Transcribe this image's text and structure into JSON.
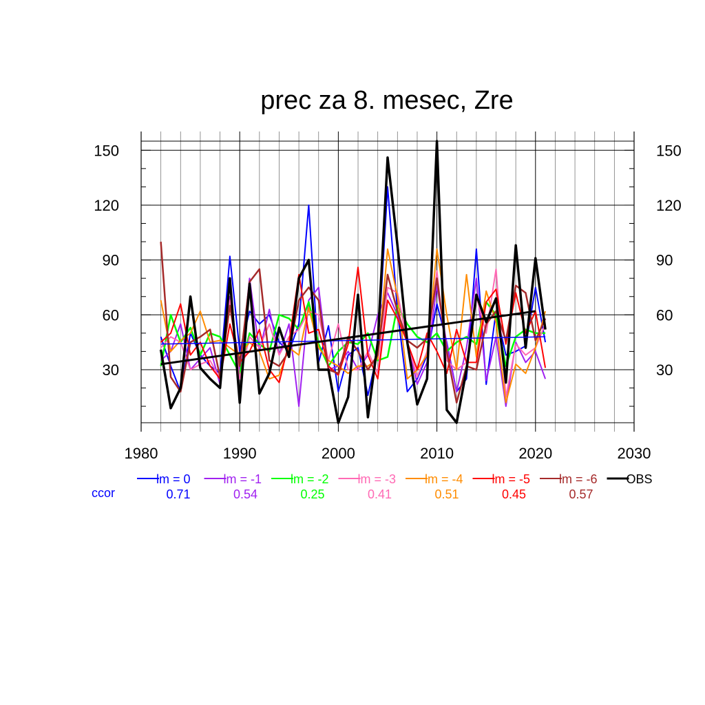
{
  "chart_data": {
    "type": "line",
    "title": "prec za 8. mesec, Zre",
    "xlim": [
      1980,
      2030
    ],
    "ylim": [
      1,
      155
    ],
    "x_ticks": [
      "1980",
      "1990",
      "2000",
      "2010",
      "2020",
      "2030"
    ],
    "y_ticks": [
      "30",
      "60",
      "90",
      "120",
      "150"
    ],
    "x": [
      1982,
      1983,
      1984,
      1985,
      1986,
      1987,
      1988,
      1989,
      1990,
      1991,
      1992,
      1993,
      1994,
      1995,
      1996,
      1997,
      1998,
      1999,
      2000,
      2001,
      2002,
      2003,
      2004,
      2005,
      2006,
      2007,
      2008,
      2009,
      2010,
      2011,
      2012,
      2013,
      2014,
      2015,
      2016,
      2017,
      2018,
      2019,
      2020,
      2021
    ],
    "grid": true,
    "legend_position": "bottom",
    "ccor_label": "ccor",
    "series": [
      {
        "name": "lm = 0",
        "color": "#0000ff",
        "width": 2,
        "ccor": "0.71",
        "values": [
          48,
          32,
          18,
          50,
          38,
          32,
          28,
          92,
          40,
          62,
          55,
          60,
          45,
          40,
          55,
          120,
          34,
          54,
          18,
          38,
          42,
          16,
          40,
          130,
          62,
          18,
          25,
          38,
          66,
          45,
          18,
          25,
          96,
          22,
          62,
          38,
          40,
          43,
          75,
          45
        ],
        "trend": [
          44,
          48
        ]
      },
      {
        "name": "lm = -1",
        "color": "#a020f0",
        "width": 2,
        "ccor": "0.54",
        "values": [
          35,
          40,
          55,
          30,
          36,
          42,
          22,
          70,
          28,
          80,
          40,
          63,
          38,
          55,
          10,
          68,
          75,
          30,
          32,
          40,
          30,
          38,
          60,
          72,
          60,
          45,
          22,
          34,
          76,
          44,
          18,
          42,
          80,
          24,
          48,
          10,
          45,
          34,
          40,
          25
        ],
        "trend": null
      },
      {
        "name": "lm = -2",
        "color": "#00ff00",
        "width": 2.5,
        "ccor": "0.25",
        "values": [
          32,
          60,
          45,
          53,
          38,
          50,
          48,
          38,
          28,
          50,
          44,
          40,
          60,
          58,
          52,
          67,
          44,
          32,
          40,
          45,
          44,
          50,
          35,
          37,
          65,
          55,
          48,
          45,
          50,
          40,
          45,
          48,
          44,
          67,
          60,
          32,
          48,
          52,
          50,
          50
        ],
        "trend": null
      },
      {
        "name": "lm = -3",
        "color": "#ff69b4",
        "width": 2,
        "ccor": "0.41",
        "values": [
          42,
          48,
          45,
          30,
          33,
          35,
          25,
          68,
          25,
          48,
          42,
          55,
          38,
          48,
          52,
          62,
          60,
          35,
          55,
          30,
          30,
          40,
          28,
          75,
          72,
          45,
          26,
          40,
          84,
          35,
          30,
          34,
          70,
          50,
          85,
          15,
          44,
          38,
          42,
          55
        ],
        "trend": null
      },
      {
        "name": "lm = -4",
        "color": "#ff8c00",
        "width": 2,
        "ccor": "0.51",
        "values": [
          68,
          40,
          46,
          50,
          62,
          45,
          46,
          42,
          38,
          45,
          40,
          25,
          27,
          42,
          38,
          64,
          42,
          35,
          32,
          28,
          32,
          32,
          36,
          96,
          70,
          25,
          30,
          38,
          96,
          60,
          30,
          82,
          37,
          73,
          56,
          12,
          33,
          28,
          42,
          62
        ],
        "trend": null
      },
      {
        "name": "lm = -5",
        "color": "#ff0000",
        "width": 2,
        "ccor": "0.45",
        "values": [
          45,
          50,
          66,
          38,
          45,
          32,
          25,
          55,
          34,
          40,
          52,
          30,
          23,
          45,
          82,
          50,
          52,
          32,
          27,
          44,
          86,
          38,
          25,
          68,
          58,
          45,
          30,
          50,
          40,
          28,
          52,
          34,
          34,
          67,
          74,
          44,
          72,
          50,
          62,
          31
        ],
        "trend": null
      },
      {
        "name": "lm = -6",
        "color": "#a52a2a",
        "width": 2.5,
        "ccor": "0.57",
        "values": [
          100,
          26,
          18,
          45,
          48,
          52,
          26,
          65,
          32,
          78,
          85,
          35,
          32,
          40,
          68,
          75,
          68,
          30,
          28,
          48,
          40,
          30,
          38,
          82,
          62,
          46,
          42,
          47,
          80,
          40,
          12,
          32,
          30,
          55,
          62,
          46,
          76,
          72,
          46,
          58
        ],
        "trend": null
      },
      {
        "name": "OBS",
        "color": "#000000",
        "width": 3.5,
        "ccor": "",
        "values": [
          41,
          9,
          20,
          70,
          31,
          25,
          20,
          80,
          12,
          77,
          17,
          28,
          53,
          37,
          80,
          90,
          30,
          30,
          1,
          15,
          71,
          4,
          45,
          146,
          98,
          45,
          11,
          25,
          155,
          8,
          1,
          30,
          71,
          56,
          69,
          23,
          98,
          42,
          91,
          52
        ],
        "trend": [
          33,
          62
        ]
      }
    ]
  }
}
